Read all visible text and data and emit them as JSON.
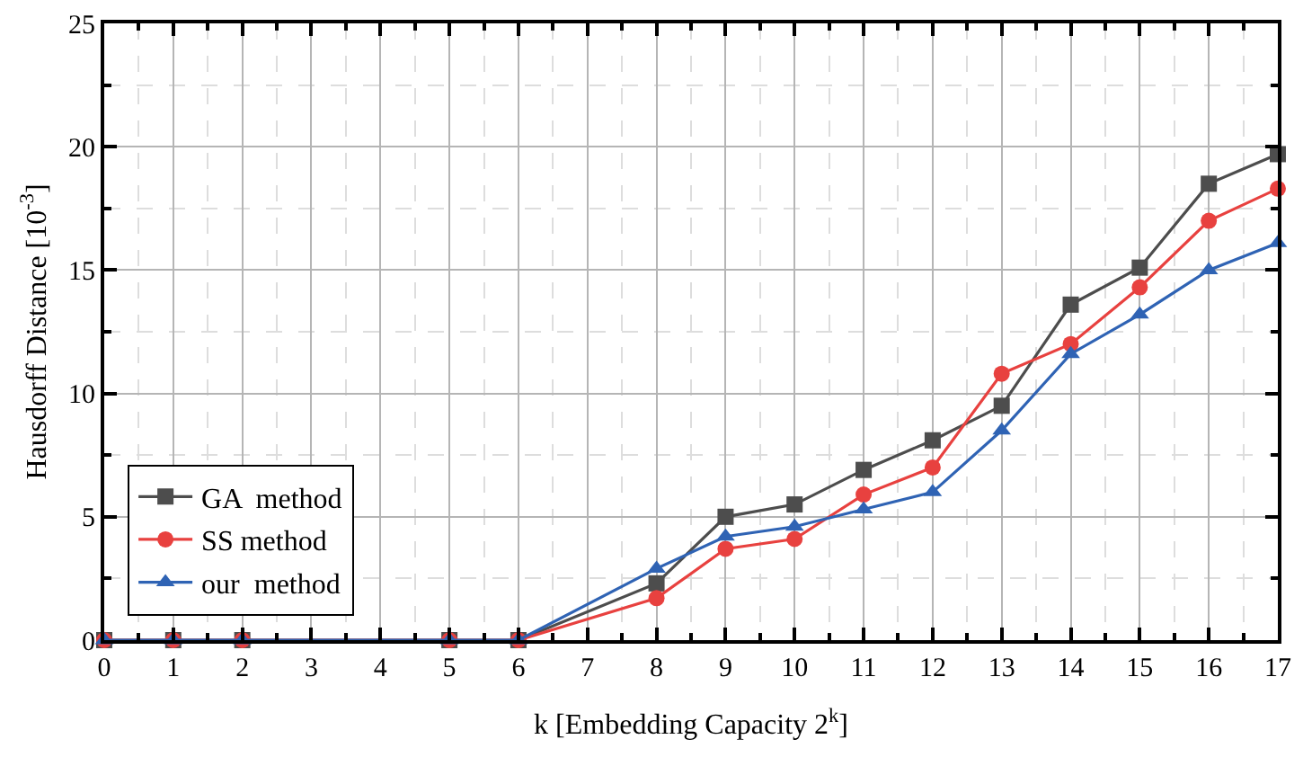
{
  "chart_data": {
    "type": "line",
    "xlabel": "k [Embedding Capacity 2$^{k}$]",
    "ylabel": "Hausdorff Distance [10$^{-3}$]",
    "x": [
      0,
      1,
      2,
      5,
      6,
      8,
      9,
      10,
      11,
      12,
      13,
      14,
      15,
      16,
      17
    ],
    "series": [
      {
        "name": "GA  method",
        "color": "#4d4d4d",
        "marker": "square",
        "values": [
          0,
          0,
          0,
          0,
          0,
          2.3,
          5.0,
          5.5,
          6.9,
          8.1,
          9.5,
          13.6,
          15.1,
          18.5,
          19.7
        ]
      },
      {
        "name": "SS method",
        "color": "#e8413f",
        "marker": "circle",
        "values": [
          0,
          0,
          0,
          0,
          0,
          1.7,
          3.7,
          4.1,
          5.9,
          7.0,
          10.8,
          12.0,
          14.3,
          17.0,
          18.3
        ]
      },
      {
        "name": "our  method",
        "color": "#2f63b4",
        "marker": "triangle",
        "values": [
          0,
          0,
          0,
          0,
          0,
          2.9,
          4.2,
          4.6,
          5.3,
          6.0,
          8.5,
          11.6,
          13.2,
          15.0,
          16.1
        ]
      }
    ],
    "xlim": [
      0,
      17
    ],
    "xticks": [
      0,
      1,
      2,
      3,
      4,
      5,
      6,
      7,
      8,
      9,
      10,
      11,
      12,
      13,
      14,
      15,
      16,
      17
    ],
    "ylim": [
      0,
      25
    ],
    "yticks": [
      0,
      5,
      10,
      15,
      20,
      25
    ],
    "grid": true,
    "legend": "bottom left",
    "line_style": "solid"
  }
}
